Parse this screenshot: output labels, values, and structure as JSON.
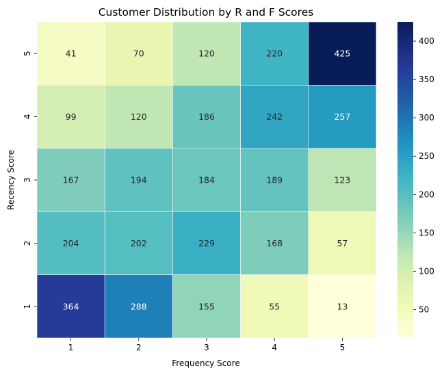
{
  "chart_data": {
    "type": "heatmap",
    "title": "Customer Distribution by R and F Scores",
    "xlabel": "Frequency Score",
    "ylabel": "Recency Score",
    "x_categories": [
      "1",
      "2",
      "3",
      "4",
      "5"
    ],
    "y_categories": [
      "5",
      "4",
      "3",
      "2",
      "1"
    ],
    "values": [
      [
        41,
        70,
        120,
        220,
        425
      ],
      [
        99,
        120,
        186,
        242,
        257
      ],
      [
        167,
        194,
        184,
        189,
        123
      ],
      [
        204,
        202,
        229,
        168,
        57
      ],
      [
        364,
        288,
        155,
        55,
        13
      ]
    ],
    "colormap": "YlGnBu",
    "color_range": [
      13,
      425
    ],
    "colorbar_ticks": [
      50,
      100,
      150,
      200,
      250,
      300,
      350,
      400
    ],
    "grid": false,
    "cell_border_color": "#ffffff"
  }
}
